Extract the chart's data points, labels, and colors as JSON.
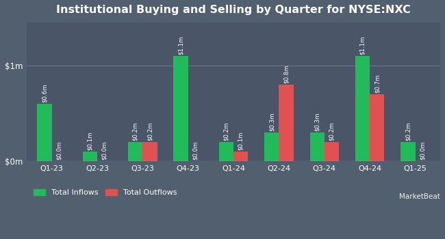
{
  "title": "Institutional Buying and Selling by Quarter for NYSE:NXC",
  "quarters": [
    "Q1-23",
    "Q2-23",
    "Q3-23",
    "Q4-23",
    "Q1-24",
    "Q2-24",
    "Q3-24",
    "Q4-24",
    "Q1-25"
  ],
  "inflows": [
    0.6,
    0.1,
    0.2,
    1.1,
    0.2,
    0.3,
    0.3,
    1.1,
    0.2
  ],
  "outflows": [
    0.0,
    0.0,
    0.2,
    0.0,
    0.1,
    0.8,
    0.2,
    0.7,
    0.0
  ],
  "inflow_labels": [
    "$0.6m",
    "$0.1m",
    "$0.2m",
    "$1.1m",
    "$0.2m",
    "$0.3m",
    "$0.3m",
    "$1.1m",
    "$0.2m"
  ],
  "outflow_labels": [
    "$0.0m",
    "$0.0m",
    "$0.2m",
    "$0.0m",
    "$0.1m",
    "$0.8m",
    "$0.2m",
    "$0.7m",
    "$0.0m"
  ],
  "inflow_color": "#22bb5b",
  "outflow_color": "#e05252",
  "bg_color": "#525f6e",
  "plot_bg_color": "#4a5568",
  "text_color": "#ffffff",
  "grid_color": "#6a7a8a",
  "bar_width": 0.32,
  "ylim": [
    0,
    1.45
  ],
  "legend_inflow": "Total Inflows",
  "legend_outflow": "Total Outflows"
}
